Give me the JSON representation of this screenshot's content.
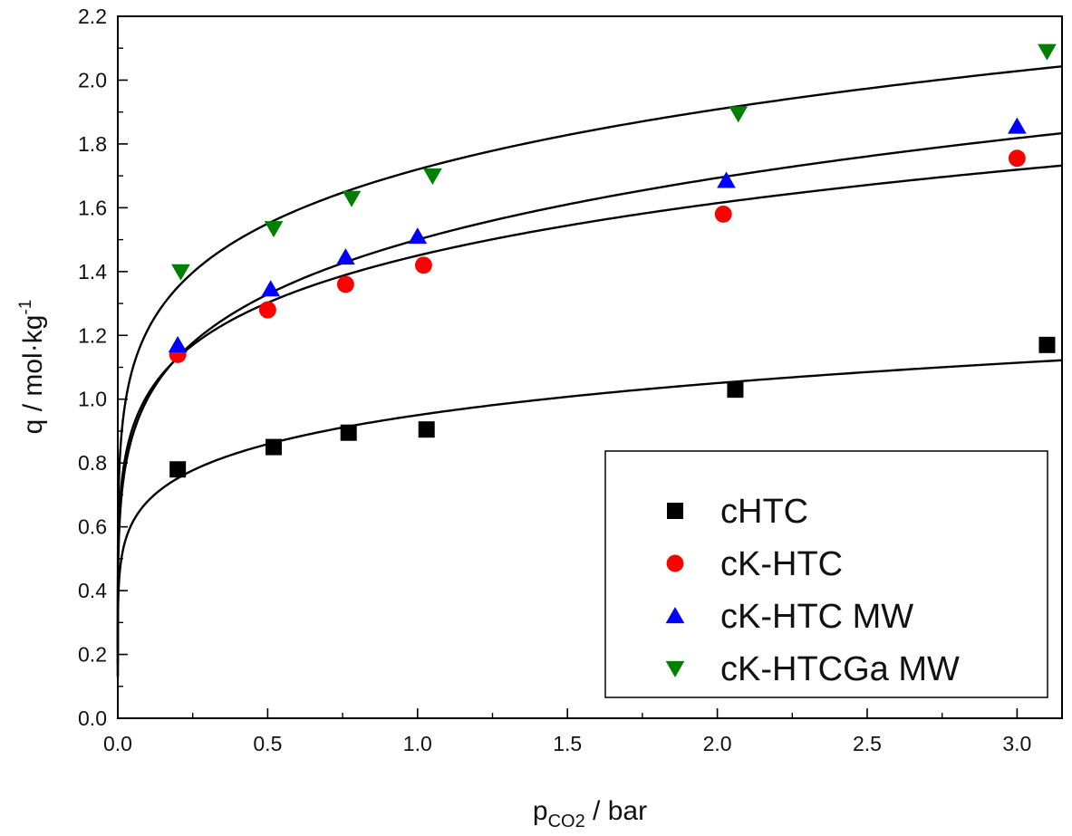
{
  "chart_data": {
    "type": "scatter",
    "title": "",
    "x_axis": {
      "label_main": "p",
      "label_sub": "CO2",
      "label_rest": " / bar",
      "range": [
        0,
        3.15
      ],
      "major_ticks": [
        0.0,
        0.5,
        1.0,
        1.5,
        2.0,
        2.5,
        3.0
      ],
      "tick_labels": [
        "0.0",
        "0.5",
        "1.0",
        "1.5",
        "2.0",
        "2.5",
        "3.0"
      ]
    },
    "y_axis": {
      "label_main": "q / mol·kg",
      "label_sup": "-1",
      "range": [
        0,
        2.2
      ],
      "major_ticks": [
        0.0,
        0.2,
        0.4,
        0.6,
        0.8,
        1.0,
        1.2,
        1.4,
        1.6,
        1.8,
        2.0,
        2.2
      ],
      "tick_labels": [
        "0.0",
        "0.2",
        "0.4",
        "0.6",
        "0.8",
        "1.0",
        "1.2",
        "1.4",
        "1.6",
        "1.8",
        "2.0",
        "2.2"
      ]
    },
    "grid": false,
    "legend_position": "bottom-right",
    "series": [
      {
        "name": "cHTC",
        "marker": "square",
        "color": "#000000",
        "x": [
          0.2,
          0.52,
          0.77,
          1.03,
          2.06,
          3.1
        ],
        "y": [
          0.78,
          0.85,
          0.895,
          0.905,
          1.03,
          1.17
        ],
        "fit": {
          "k": 0.95,
          "n": 0.145
        }
      },
      {
        "name": "cK-HTC",
        "marker": "circle",
        "color": "#ff0000",
        "x": [
          0.2,
          0.5,
          0.76,
          1.02,
          2.02,
          3.0
        ],
        "y": [
          1.14,
          1.28,
          1.36,
          1.42,
          1.58,
          1.755
        ],
        "fit": {
          "k": 1.45,
          "n": 0.155
        }
      },
      {
        "name": "cK-HTC MW",
        "marker": "triangle-up",
        "color": "#0000ff",
        "x": [
          0.2,
          0.51,
          0.76,
          1.0,
          2.03,
          3.0
        ],
        "y": [
          1.17,
          1.345,
          1.445,
          1.51,
          1.685,
          1.855
        ],
        "fit": {
          "k": 1.5,
          "n": 0.175
        }
      },
      {
        "name": "cK-HTCGa MW",
        "marker": "triangle-down",
        "color": "#008000",
        "x": [
          0.21,
          0.52,
          0.78,
          1.05,
          2.07,
          3.1
        ],
        "y": [
          1.4,
          1.535,
          1.63,
          1.7,
          1.895,
          2.09
        ],
        "fit": {
          "k": 1.72,
          "n": 0.15
        }
      }
    ]
  }
}
